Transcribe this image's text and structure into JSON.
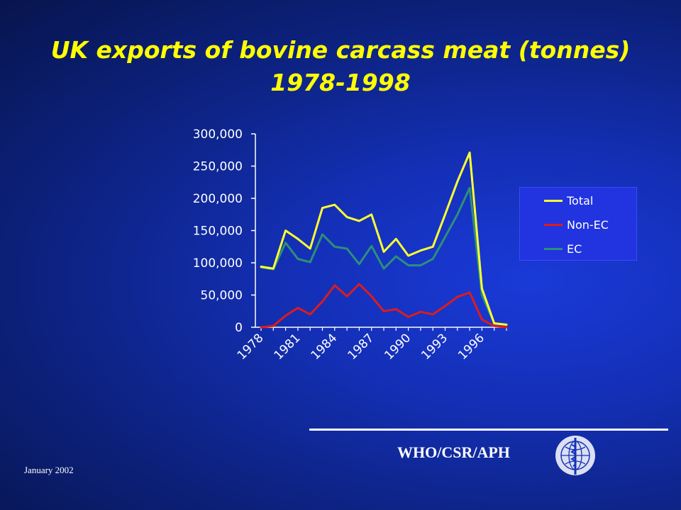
{
  "slide": {
    "title_line1": "UK exports of bovine carcass meat (tonnes)",
    "title_line2": "1978-1998",
    "org": "WHO/CSR/APH",
    "date": "January 2002",
    "background_color": "#1430b8",
    "title_color": "#ffff00"
  },
  "chart_data": {
    "type": "line",
    "x": [
      1978,
      1979,
      1980,
      1981,
      1982,
      1983,
      1984,
      1985,
      1986,
      1987,
      1988,
      1989,
      1990,
      1991,
      1992,
      1993,
      1994,
      1995,
      1996,
      1997,
      1998
    ],
    "x_tick_labels": [
      "1978",
      "1981",
      "1984",
      "1987",
      "1990",
      "1993",
      "1996"
    ],
    "x_tick_values": [
      1978,
      1981,
      1984,
      1987,
      1990,
      1993,
      1996
    ],
    "y_ticks": [
      0,
      50000,
      100000,
      150000,
      200000,
      250000,
      300000
    ],
    "y_tick_labels": [
      "0",
      "50,000",
      "100,000",
      "150,000",
      "200,000",
      "250,000",
      "300,000"
    ],
    "ylim": [
      0,
      300000
    ],
    "grid": false,
    "legend_position": "right",
    "series": [
      {
        "name": "Total",
        "color": "#ffff33",
        "values": [
          94000,
          91000,
          150000,
          137000,
          122000,
          185000,
          190000,
          171000,
          165000,
          175000,
          117000,
          137000,
          111000,
          119000,
          125000,
          175000,
          226000,
          271000,
          60000,
          6000,
          4000
        ]
      },
      {
        "name": "Non-EC",
        "color": "#dd1c1c",
        "values": [
          0,
          2000,
          18000,
          30000,
          20000,
          40000,
          65000,
          48000,
          67000,
          48000,
          25000,
          28000,
          16000,
          24000,
          20000,
          33000,
          47000,
          54000,
          12000,
          2000,
          0
        ]
      },
      {
        "name": "EC",
        "color": "#2e8f7a",
        "values": [
          93000,
          90000,
          131000,
          106000,
          101000,
          144000,
          125000,
          122000,
          98000,
          126000,
          91000,
          110000,
          96000,
          96000,
          106000,
          140000,
          175000,
          216000,
          50000,
          6000,
          4000
        ]
      }
    ]
  }
}
